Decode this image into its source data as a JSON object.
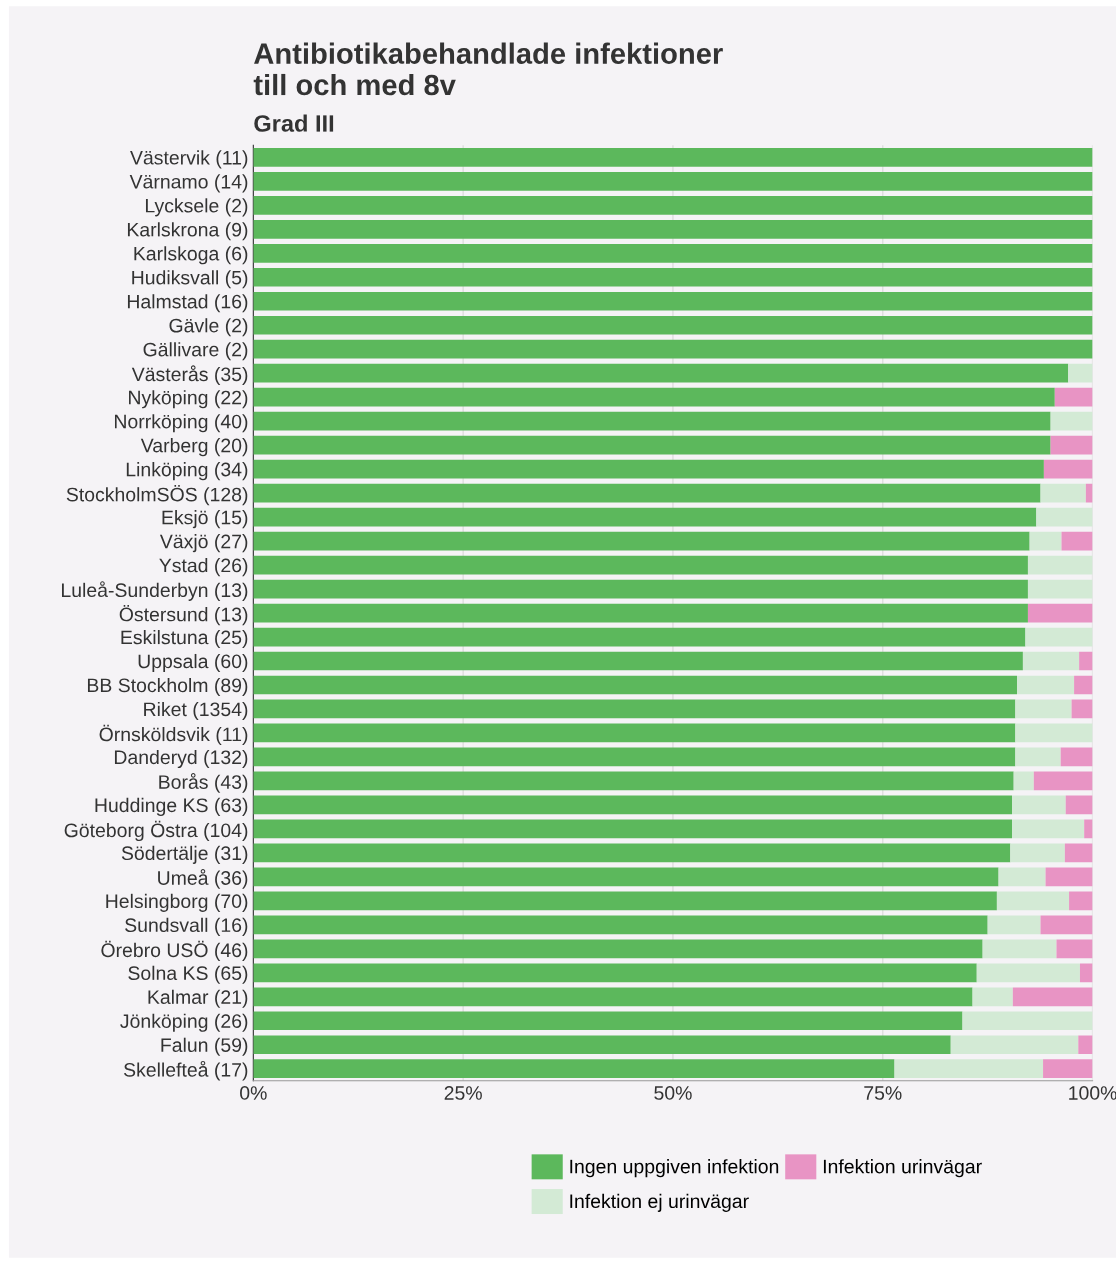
{
  "chart_data": {
    "type": "bar",
    "orientation": "horizontal",
    "stacked": true,
    "title": "Antibiotikabehandlade infektioner\ntill och med 8v",
    "subtitle": "Grad III",
    "categories": [
      "Västervik (11)",
      "Värnamo (14)",
      "Lycksele (2)",
      "Karlskrona (9)",
      "Karlskoga (6)",
      "Hudiksvall (5)",
      "Halmstad (16)",
      "Gävle (2)",
      "Gällivare (2)",
      "Västerås (35)",
      "Nyköping (22)",
      "Norrköping (40)",
      "Varberg (20)",
      "Linköping (34)",
      "StockholmSÖS (128)",
      "Eksjö (15)",
      "Växjö (27)",
      "Ystad (26)",
      "Luleå-Sunderbyn (13)",
      "Östersund (13)",
      "Eskilstuna (25)",
      "Uppsala (60)",
      "BB Stockholm (89)",
      "Riket (1354)",
      "Örnsköldsvik (11)",
      "Danderyd (132)",
      "Borås (43)",
      "Huddinge KS (63)",
      "Göteborg Östra (104)",
      "Södertälje (31)",
      "Umeå (36)",
      "Helsingborg (70)",
      "Sundsvall (16)",
      "Örebro USÖ (46)",
      "Solna KS (65)",
      "Kalmar (21)",
      "Jönköping (26)",
      "Falun (59)",
      "Skellefteå (17)"
    ],
    "series": [
      {
        "name": "Ingen uppgiven infektion",
        "color": "#5cb85c",
        "values": [
          100,
          100,
          100,
          100,
          100,
          100,
          100,
          100,
          100,
          97.1,
          95.5,
          95.0,
          95.0,
          94.2,
          93.8,
          93.3,
          92.5,
          92.3,
          92.3,
          92.3,
          92.0,
          91.7,
          91.0,
          90.8,
          90.8,
          90.8,
          90.6,
          90.4,
          90.4,
          90.2,
          88.8,
          88.6,
          87.5,
          86.9,
          86.2,
          85.7,
          84.5,
          83.1,
          76.4
        ]
      },
      {
        "name": "Infektion ej urinvägar",
        "color": "#d3ead5",
        "values": [
          0,
          0,
          0,
          0,
          0,
          0,
          0,
          0,
          0,
          2.9,
          0,
          5.0,
          0,
          0,
          5.4,
          6.7,
          3.8,
          7.7,
          7.7,
          0,
          8.0,
          6.7,
          6.8,
          6.7,
          9.2,
          5.4,
          2.4,
          6.4,
          8.6,
          6.5,
          5.6,
          8.6,
          6.3,
          8.8,
          12.3,
          4.8,
          15.5,
          15.2,
          17.7
        ]
      },
      {
        "name": "Infektion urinvägar",
        "color": "#e894c4",
        "values": [
          0,
          0,
          0,
          0,
          0,
          0,
          0,
          0,
          0,
          0,
          4.5,
          0,
          5.0,
          5.8,
          0.8,
          0,
          3.7,
          0,
          0,
          7.7,
          0,
          1.6,
          2.2,
          2.5,
          0,
          3.8,
          7.0,
          3.2,
          1.0,
          3.3,
          5.6,
          2.8,
          6.2,
          4.3,
          1.5,
          9.5,
          0,
          1.7,
          5.9
        ]
      }
    ],
    "xlim": [
      0,
      100
    ],
    "xticks": [
      {
        "value": 0,
        "label": "0%"
      },
      {
        "value": 25,
        "label": "25%"
      },
      {
        "value": 50,
        "label": "50%"
      },
      {
        "value": 75,
        "label": "75%"
      },
      {
        "value": 100,
        "label": "100%"
      }
    ],
    "grid": "x",
    "legend": "bottom"
  }
}
